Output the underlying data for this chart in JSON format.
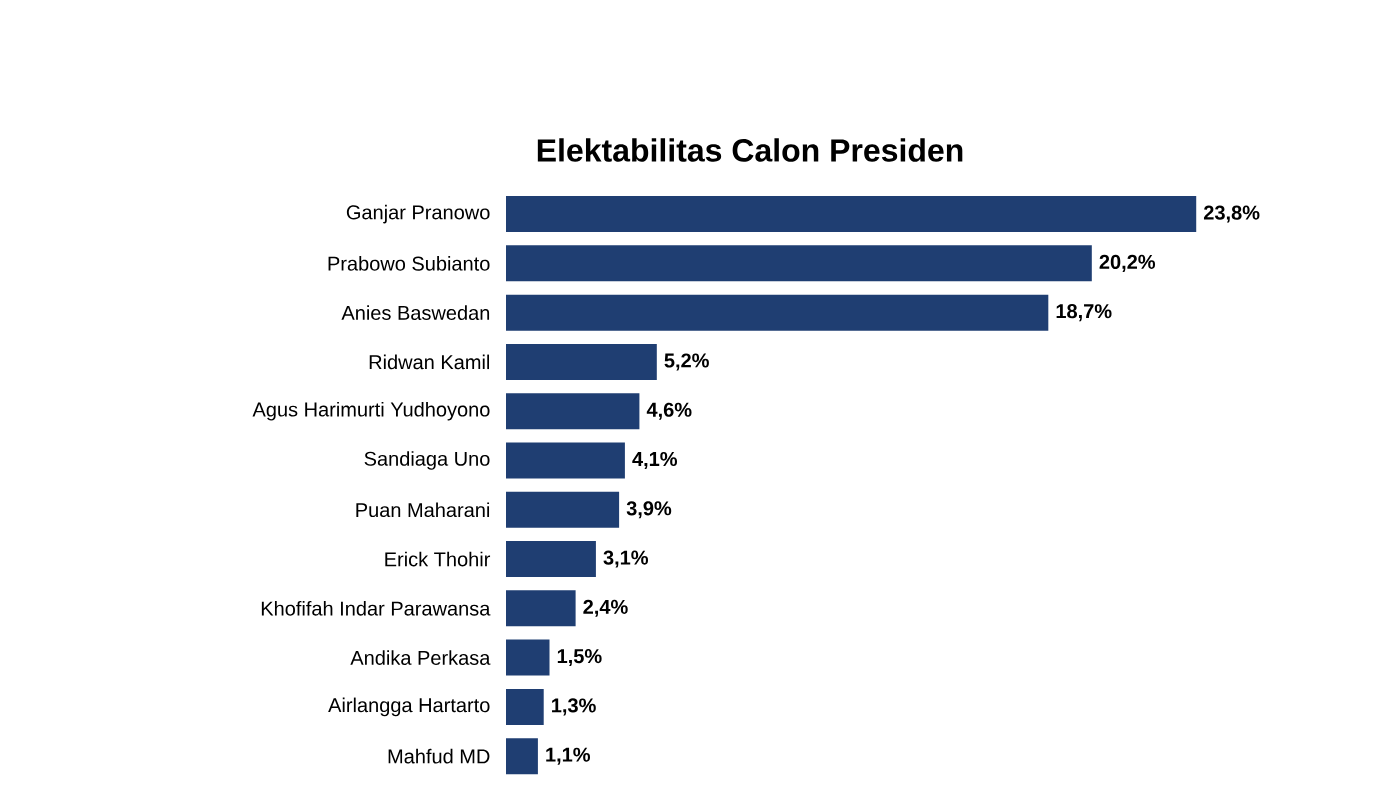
{
  "chart_data": {
    "type": "bar",
    "orientation": "horizontal",
    "title": "Elektabilitas Calon Presiden",
    "categories": [
      "Ganjar Pranowo",
      "Prabowo Subianto",
      "Anies Baswedan",
      "Ridwan Kamil",
      "Agus Harimurti Yudhoyono",
      "Sandiaga Uno",
      "Puan Maharani",
      "Erick Thohir",
      "Khofifah Indar Parawansa",
      "Andika Perkasa",
      "Airlangga Hartarto",
      "Mahfud MD"
    ],
    "values": [
      23.8,
      20.2,
      18.7,
      5.2,
      4.6,
      4.1,
      3.9,
      3.1,
      2.4,
      1.5,
      1.3,
      1.1
    ],
    "value_labels": [
      "23,8%",
      "20,2%",
      "18,7%",
      "5,2%",
      "4,6%",
      "4,1%",
      "3,9%",
      "3,1%",
      "2,4%",
      "1,5%",
      "1,3%",
      "1,1%"
    ],
    "color": "#1f3e72"
  }
}
